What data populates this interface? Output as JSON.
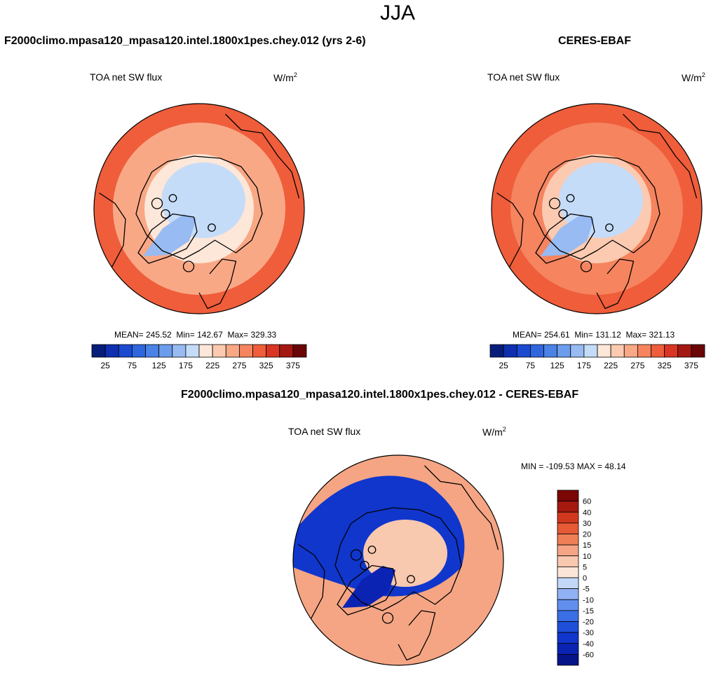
{
  "page": {
    "season": "JJA",
    "model_title": "F2000climo.mpasa120_mpasa120.intel.1800x1pes.chey.012 (yrs 2-6)",
    "obs_title": "CERES-EBAF",
    "diff_title": "F2000climo.mpasa120_mpasa120.intel.1800x1pes.chey.012 - CERES-EBAF"
  },
  "panels": {
    "model": {
      "variable": "TOA net SW flux",
      "units_base": "W/m",
      "units_exp": "2",
      "mean_text": "MEAN= 245.52",
      "min_text": "Min= 142.67",
      "max_text": "Max= 329.33"
    },
    "obs": {
      "variable": "TOA net SW flux",
      "units_base": "W/m",
      "units_exp": "2",
      "mean_text": "MEAN= 254.61",
      "min_text": "Min= 131.12",
      "max_text": "Max= 321.13"
    },
    "diff": {
      "variable": "TOA net SW flux",
      "units_base": "W/m",
      "units_exp": "2",
      "minmax_text": "MIN = -109.53 MAX =  48.14"
    }
  },
  "chart_data": [
    {
      "type": "heatmap",
      "projection": "north-polar-stereographic",
      "title": "TOA net SW flux",
      "units": "W/m^2",
      "mean": 245.52,
      "min": 142.67,
      "max": 329.33,
      "colorbar": {
        "orientation": "horizontal",
        "levels": [
          25,
          50,
          75,
          100,
          125,
          150,
          175,
          200,
          225,
          250,
          275,
          300,
          325,
          350,
          375
        ],
        "tick_labels": [
          "25",
          "75",
          "125",
          "175",
          "225",
          "275",
          "325",
          "375"
        ],
        "colors": [
          "#081d7a",
          "#0e2fb0",
          "#1a4ad0",
          "#2e66dd",
          "#4a82e6",
          "#6c9ded",
          "#97bbf2",
          "#c5dcf8",
          "#fde7d9",
          "#fccab0",
          "#f9a886",
          "#f5845f",
          "#ef5d3a",
          "#d93522",
          "#a51812",
          "#6a0606"
        ]
      },
      "field": {
        "polar_cap": 195,
        "cap_ring": 215,
        "mid_latitudes": 265,
        "low_latitudes": 300,
        "greenland": 160
      }
    },
    {
      "type": "heatmap",
      "projection": "north-polar-stereographic",
      "title": "TOA net SW flux",
      "units": "W/m^2",
      "mean": 254.61,
      "min": 131.12,
      "max": 321.13,
      "colorbar": {
        "orientation": "horizontal",
        "levels": [
          25,
          50,
          75,
          100,
          125,
          150,
          175,
          200,
          225,
          250,
          275,
          300,
          325,
          350,
          375
        ],
        "tick_labels": [
          "25",
          "75",
          "125",
          "175",
          "225",
          "275",
          "325",
          "375"
        ],
        "colors": [
          "#081d7a",
          "#0e2fb0",
          "#1a4ad0",
          "#2e66dd",
          "#4a82e6",
          "#6c9ded",
          "#97bbf2",
          "#c5dcf8",
          "#fde7d9",
          "#fccab0",
          "#f9a886",
          "#f5845f",
          "#ef5d3a",
          "#d93522",
          "#a51812",
          "#6a0606"
        ]
      },
      "field": {
        "polar_cap": 195,
        "cap_ring": 230,
        "mid_latitudes": 280,
        "low_latitudes": 305,
        "greenland": 160
      }
    },
    {
      "type": "heatmap",
      "projection": "north-polar-stereographic",
      "title": "TOA net SW flux (model - CERES-EBAF)",
      "units": "W/m^2",
      "min": -109.53,
      "max": 48.14,
      "colorbar": {
        "orientation": "vertical",
        "levels": [
          -60,
          -40,
          -30,
          -20,
          -15,
          -10,
          -5,
          0,
          5,
          10,
          15,
          20,
          30,
          40,
          60
        ],
        "tick_labels": [
          "60",
          "40",
          "30",
          "20",
          "15",
          "10",
          "5",
          "0",
          "-5",
          "-10",
          "-15",
          "-20",
          "-30",
          "-40",
          "-60"
        ],
        "colors": [
          "#06148a",
          "#0a23b3",
          "#1036cc",
          "#1f4fd9",
          "#3a6ee6",
          "#628eee",
          "#90b2f4",
          "#c3d8f9",
          "#fbe5d8",
          "#f8c8af",
          "#f5a584",
          "#ef7f57",
          "#e65a35",
          "#d2381e",
          "#a5190e",
          "#7a0606"
        ]
      },
      "field": {
        "arctic_ocean": 7,
        "land_ring": -40,
        "low_latitudes": 10,
        "greenland": -60
      }
    }
  ]
}
